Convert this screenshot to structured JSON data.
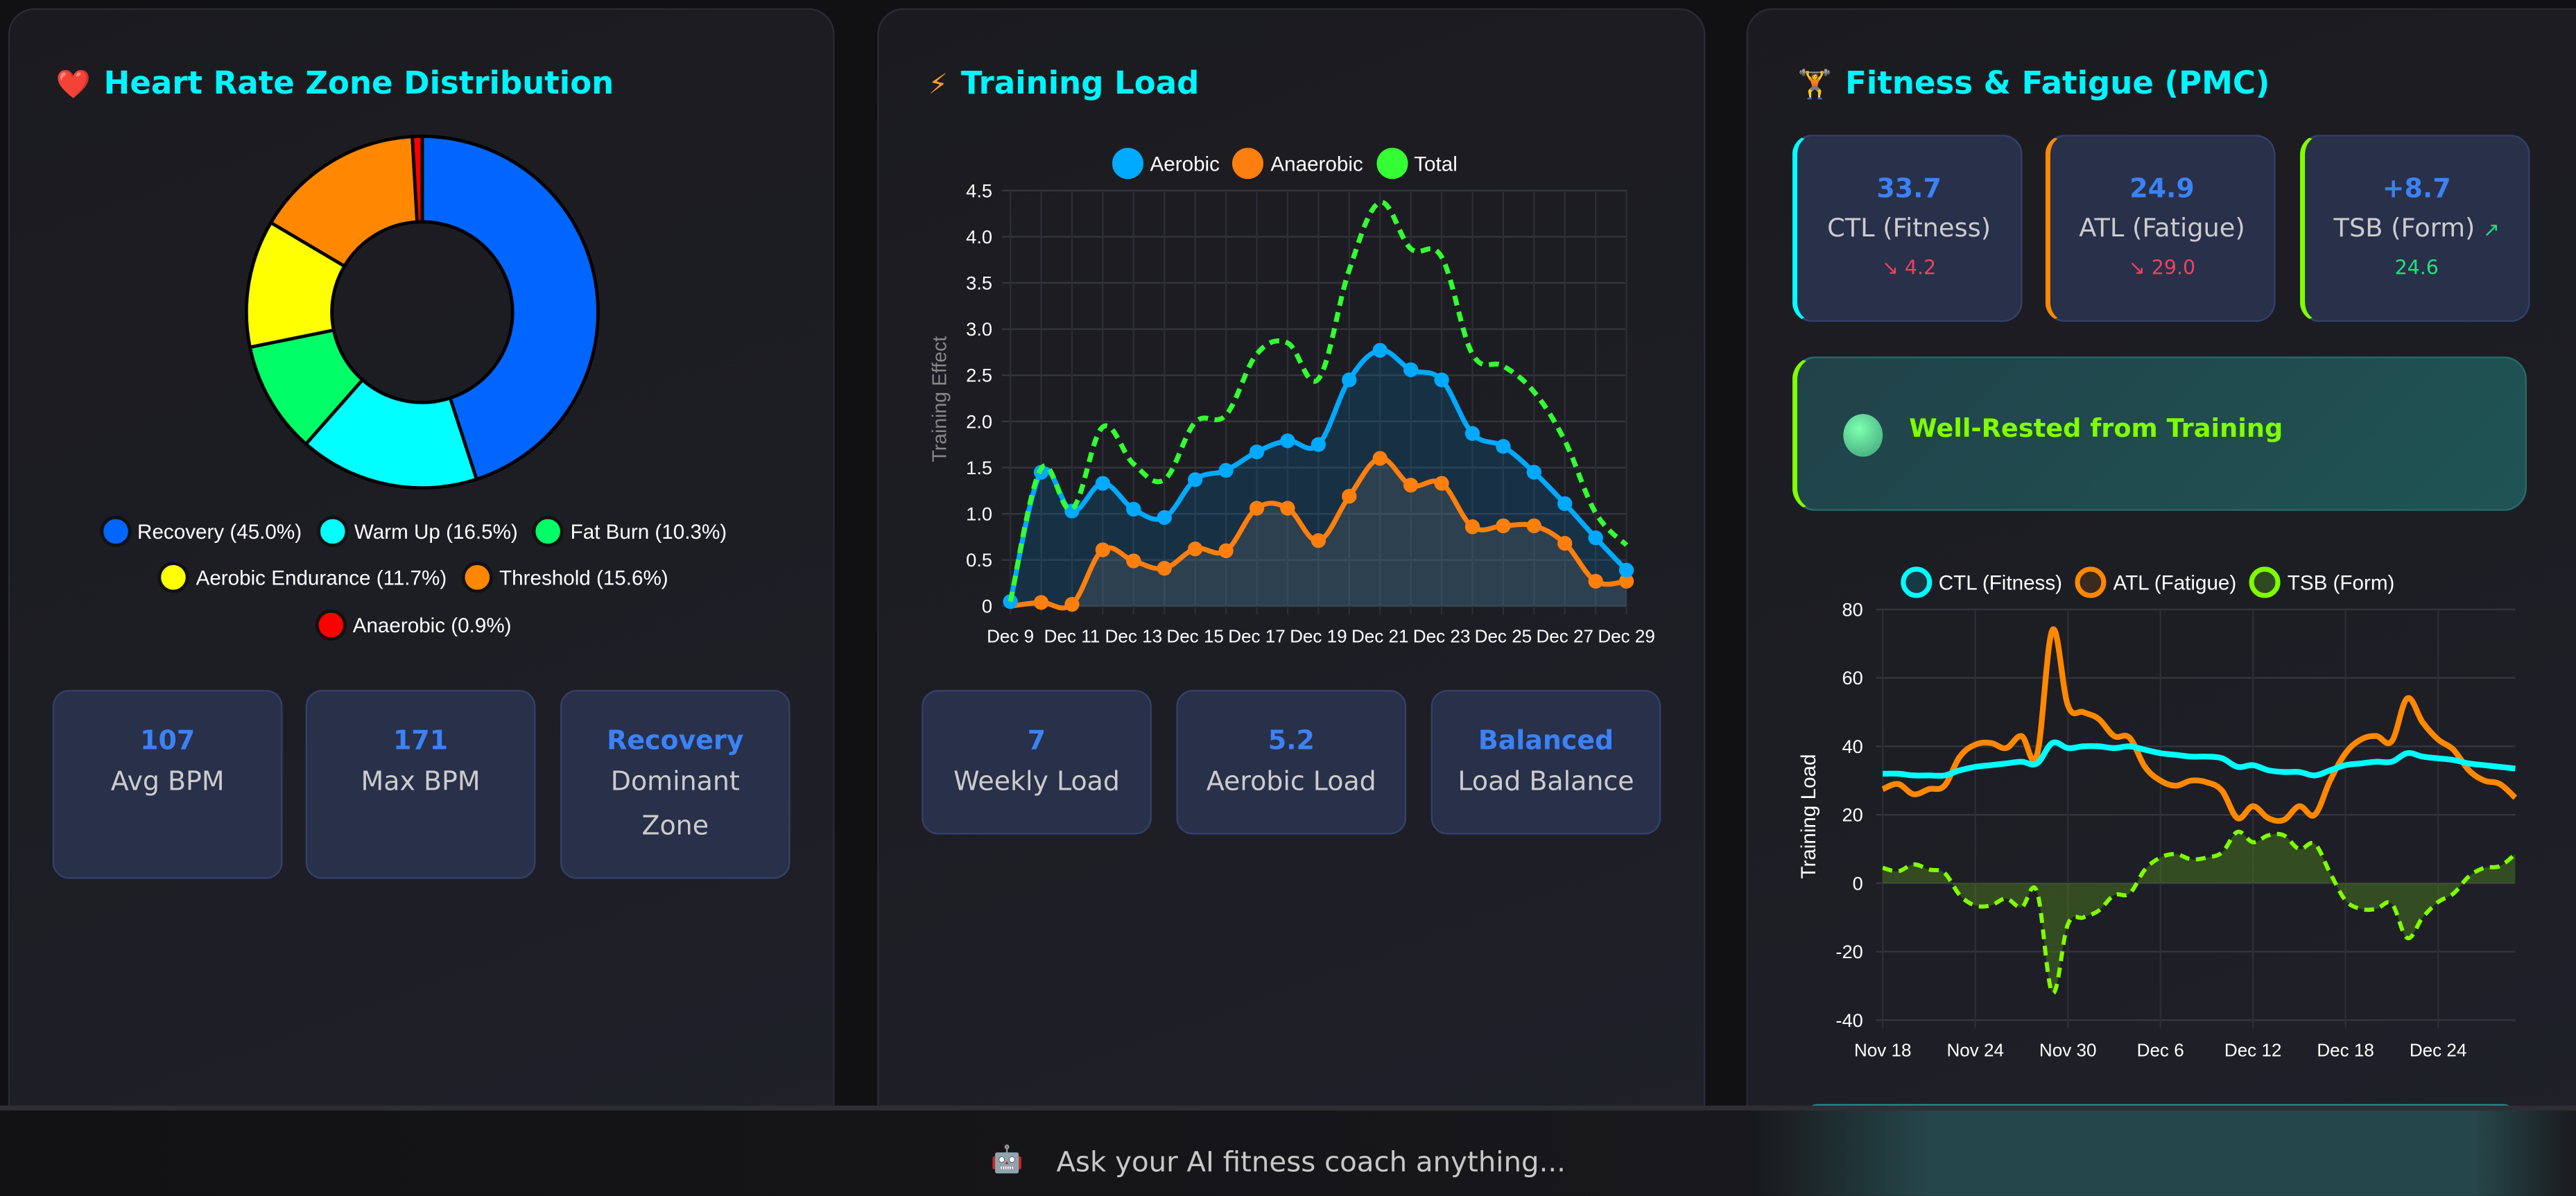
{
  "hr_zones": {
    "title": "Heart Rate Zone Distribution",
    "icon": "heart-icon",
    "stats": [
      {
        "value": "107",
        "label": "Avg BPM"
      },
      {
        "value": "171",
        "label": "Max BPM"
      },
      {
        "value": "Recovery",
        "label": "Dominant Zone"
      }
    ]
  },
  "training_load": {
    "title": "Training Load",
    "icon": "lightning-icon",
    "stats": [
      {
        "value": "7",
        "label": "Weekly Load"
      },
      {
        "value": "5.2",
        "label": "Aerobic Load"
      },
      {
        "value": "Balanced",
        "label": "Load Balance"
      }
    ]
  },
  "pmc": {
    "title": "Fitness & Fatigue (PMC)",
    "icon": "weightlifter-icon",
    "cards": [
      {
        "value": "33.7",
        "label": "CTL (Fitness)",
        "delta": "↘ 4.2",
        "color": "#00ffff",
        "delta_color": "#f43f5e"
      },
      {
        "value": "24.9",
        "label": "ATL (Fatigue)",
        "delta": "↘ 29.0",
        "color": "#ff8800",
        "delta_color": "#f43f5e"
      },
      {
        "value": "+8.7",
        "label": "TSB (Form)",
        "trend": "↗",
        "delta": "24.6",
        "color": "#7fff00",
        "delta_color": "#22e07a"
      }
    ],
    "status": "Well-Rested from Training"
  },
  "chat": {
    "placeholder": "Ask your AI fitness coach anything...",
    "icon": "robot-icon"
  },
  "chart_data": [
    {
      "type": "pie",
      "variant": "doughnut",
      "categories": [
        "Recovery",
        "Warm Up",
        "Fat Burn",
        "Aerobic Endurance",
        "Threshold",
        "Anaerobic"
      ],
      "legend_labels": [
        "Recovery (45.0%)",
        "Warm Up (16.5%)",
        "Fat Burn (10.3%)",
        "Aerobic Endurance (11.7%)",
        "Threshold (15.6%)",
        "Anaerobic (0.9%)"
      ],
      "values": [
        45.0,
        16.5,
        10.3,
        11.7,
        15.6,
        0.9
      ],
      "colors": [
        "#0066ff",
        "#00ffff",
        "#00ff66",
        "#ffff00",
        "#ff8800",
        "#ff0000"
      ],
      "legend": "bottom"
    },
    {
      "type": "line",
      "x": [
        "Dec 9",
        "Dec 10",
        "Dec 11",
        "Dec 12",
        "Dec 13",
        "Dec 14",
        "Dec 15",
        "Dec 16",
        "Dec 17",
        "Dec 18",
        "Dec 19",
        "Dec 20",
        "Dec 21",
        "Dec 22",
        "Dec 23",
        "Dec 24",
        "Dec 25",
        "Dec 26",
        "Dec 27",
        "Dec 28",
        "Dec 29"
      ],
      "x_tick_labels": [
        "Dec 9",
        "Dec 11",
        "Dec 13",
        "Dec 15",
        "Dec 17",
        "Dec 19",
        "Dec 21",
        "Dec 23",
        "Dec 25",
        "Dec 27",
        "Dec 29"
      ],
      "series": [
        {
          "name": "Aerobic",
          "color": "#00aaff",
          "values": [
            0.05,
            1.45,
            1.03,
            1.33,
            1.05,
            0.96,
            1.37,
            1.47,
            1.67,
            1.79,
            1.75,
            2.45,
            2.77,
            2.56,
            2.45,
            1.87,
            1.73,
            1.45,
            1.11,
            0.74,
            0.39
          ]
        },
        {
          "name": "Anaerobic",
          "color": "#ff7f0e",
          "values": [
            0,
            0.04,
            0.02,
            0.61,
            0.49,
            0.41,
            0.62,
            0.6,
            1.06,
            1.06,
            0.71,
            1.19,
            1.6,
            1.31,
            1.33,
            0.86,
            0.87,
            0.87,
            0.68,
            0.27,
            0.27
          ]
        },
        {
          "name": "Total",
          "color": "#33ff33",
          "values": [
            0.05,
            1.49,
            1.05,
            1.94,
            1.54,
            1.37,
            1.99,
            2.07,
            2.73,
            2.85,
            2.46,
            3.64,
            4.37,
            3.87,
            3.78,
            2.73,
            2.6,
            2.32,
            1.79,
            1.01,
            0.66
          ]
        }
      ],
      "ylabel": "Training Effect",
      "ylim": [
        0,
        4.5
      ],
      "y_ticks": [
        "0",
        "0.5",
        "1.0",
        "1.5",
        "2.0",
        "2.5",
        "3.0",
        "3.5",
        "4.0",
        "4.5"
      ],
      "grid": true,
      "legend": "top"
    },
    {
      "type": "line",
      "x_start": "Nov 18",
      "x_end": "Dec 29",
      "x_tick_labels": [
        "Nov 18",
        "Nov 24",
        "Nov 30",
        "Dec 6",
        "Dec 12",
        "Dec 18",
        "Dec 24"
      ],
      "series": [
        {
          "name": "CTL (Fitness)",
          "color": "#00ffff",
          "values": [
            32,
            32,
            31.5,
            31.5,
            31.5,
            33,
            34,
            34.5,
            35,
            35.5,
            35,
            41,
            39.5,
            40,
            40,
            39.5,
            40,
            39,
            38,
            37.5,
            37,
            37,
            36.5,
            34,
            34.5,
            33,
            32.5,
            32.5,
            31.5,
            33,
            34.5,
            35,
            35.5,
            35.5,
            38,
            37,
            36.5,
            36,
            35,
            34.5,
            34,
            33.5
          ]
        },
        {
          "name": "ATL (Fatigue)",
          "color": "#ff8800",
          "values": [
            27.5,
            29,
            26,
            27.5,
            28.5,
            37,
            40.5,
            41,
            39.5,
            43,
            37.5,
            74,
            52,
            50,
            48,
            43,
            42.5,
            34,
            30,
            28.5,
            30,
            29.5,
            27,
            19,
            22.5,
            19,
            18.5,
            22.5,
            20,
            30,
            38,
            42,
            43,
            41.5,
            54,
            47,
            42,
            39,
            33,
            30,
            29,
            25
          ]
        },
        {
          "name": "TSB (Form)",
          "color": "#7fff00",
          "values": [
            4.5,
            3.5,
            5.5,
            4,
            3,
            -3.5,
            -6.5,
            -6.5,
            -4.5,
            -7,
            -2.5,
            -32,
            -12,
            -10,
            -8,
            -3.5,
            -3,
            4,
            7.5,
            8.5,
            7,
            7.5,
            9,
            15,
            12,
            14,
            14,
            10,
            11.5,
            3,
            -5,
            -7.5,
            -7.5,
            -6,
            -16,
            -10,
            -5.5,
            -3,
            2,
            4.5,
            5,
            8.5
          ]
        }
      ],
      "ylabel": "Training Load",
      "ylim": [
        -40,
        80
      ],
      "y_ticks": [
        "-40",
        "-20",
        "0",
        "20",
        "40",
        "60",
        "80"
      ],
      "grid": true,
      "legend": "top"
    }
  ]
}
